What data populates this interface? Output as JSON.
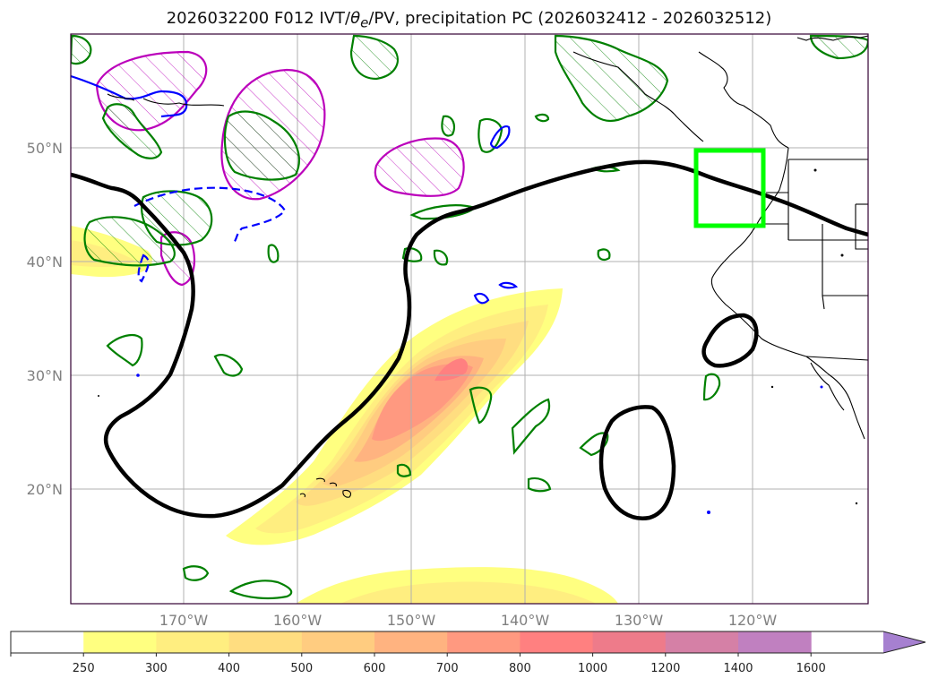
{
  "title": "2026032200 F012 IVT/θe/PV, precipitation PC (2026032412 - 2026032512)",
  "title_parts": {
    "prefix": "2026032200 F012 IVT/",
    "theta": "θ",
    "theta_sub": "e",
    "suffix": "/PV, precipitation PC (2026032412 - 2026032512)"
  },
  "map": {
    "projection": "PlateCarree",
    "lon_range": [
      180,
      250
    ],
    "lat_range": [
      10,
      60
    ],
    "lat_labels": [
      "50°N",
      "40°N",
      "30°N",
      "20°N"
    ],
    "lon_labels": [
      "170°W",
      "160°W",
      "150°W",
      "140°W",
      "130°W",
      "120°W"
    ],
    "gridlines": true,
    "highlight_box": {
      "color": "#00ff00",
      "lon": [
        -125,
        -119
      ],
      "lat": [
        43,
        50
      ]
    },
    "colors": {
      "pv_contour": "#000000",
      "theta_e_positive": "#008000",
      "theta_e_negative": "#0000ff",
      "pv_hatched": "#bb00bb",
      "coastline": "#000000"
    }
  },
  "colorbar": {
    "ticks": [
      "250",
      "300",
      "400",
      "500",
      "600",
      "700",
      "800",
      "1000",
      "1200",
      "1400",
      "1600"
    ],
    "colors": [
      "#ffffff",
      "#ffff80",
      "#ffee80",
      "#ffdd80",
      "#ffcc80",
      "#ffb380",
      "#ff9980",
      "#ff8080",
      "#ee7b8a",
      "#d580a6",
      "#c080c0",
      "#a680d0"
    ],
    "extend": "max"
  }
}
